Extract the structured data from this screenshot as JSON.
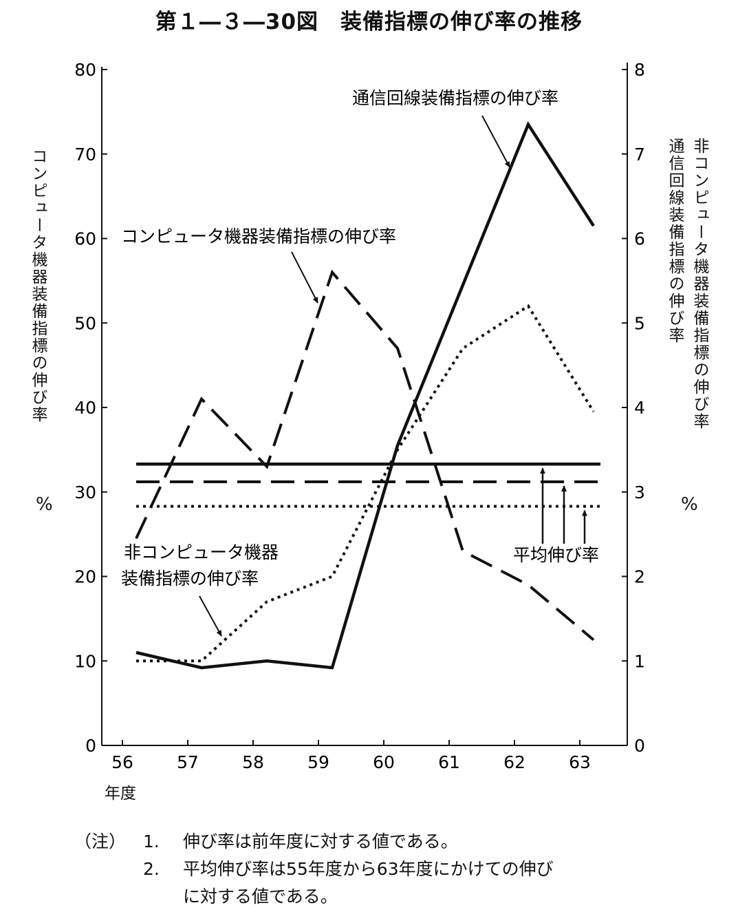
{
  "title": "第１―３―30図　装備指標の伸び率の推移",
  "chart_data": {
    "type": "line",
    "x": [
      "56",
      "57",
      "58",
      "59",
      "60",
      "61",
      "62",
      "63"
    ],
    "xlabel": "年度",
    "y_left": {
      "label": "コンピュータ機器装備指標の伸び率",
      "unit": "%",
      "range": [
        0,
        80
      ],
      "ticks": [
        "0",
        "10",
        "20",
        "30",
        "40",
        "50",
        "60",
        "70",
        "80"
      ]
    },
    "y_right": {
      "label_1": "非コンピュータ機器装備指標の伸び率",
      "label_2": "通信回線装備指標の伸び率",
      "unit": "%",
      "range": [
        0,
        8
      ],
      "ticks": [
        "0",
        "1",
        "2",
        "3",
        "4",
        "5",
        "6",
        "7",
        "8"
      ]
    },
    "series": [
      {
        "name": "通信回線装備指標の伸び率",
        "axis": "right",
        "style": "solid",
        "values": [
          1.1,
          0.92,
          1.0,
          0.92,
          3.55,
          5.45,
          7.35,
          6.15
        ],
        "average": 3.33
      },
      {
        "name": "コンピュータ機器装備指標の伸び率",
        "axis": "left",
        "style": "dashed",
        "values": [
          24.5,
          41,
          33,
          56,
          47,
          23,
          19,
          12.5
        ],
        "average": 31.2
      },
      {
        "name": "非コンピュータ機器装備指標の伸び率",
        "axis": "right",
        "style": "dotted",
        "values": [
          1.0,
          1.0,
          1.7,
          2.0,
          3.5,
          4.7,
          5.2,
          3.95
        ],
        "average": 2.83
      }
    ],
    "annotations": {
      "comm": "通信回線装備指標の伸び率",
      "comp": "コンピュータ機器装備指標の伸び率",
      "noncomp_1": "非コンピュータ機器",
      "noncomp_2": "装備指標の伸び率",
      "avg": "平均伸び率"
    },
    "grid": false,
    "legend": "none"
  },
  "notes": {
    "heading": "（注）",
    "items": [
      {
        "num": "1.",
        "text": "伸び率は前年度に対する値である。"
      },
      {
        "num": "2.",
        "text": "平均伸び率は55年度から63年度にかけての伸び",
        "cont": "に対する値である。"
      }
    ]
  }
}
